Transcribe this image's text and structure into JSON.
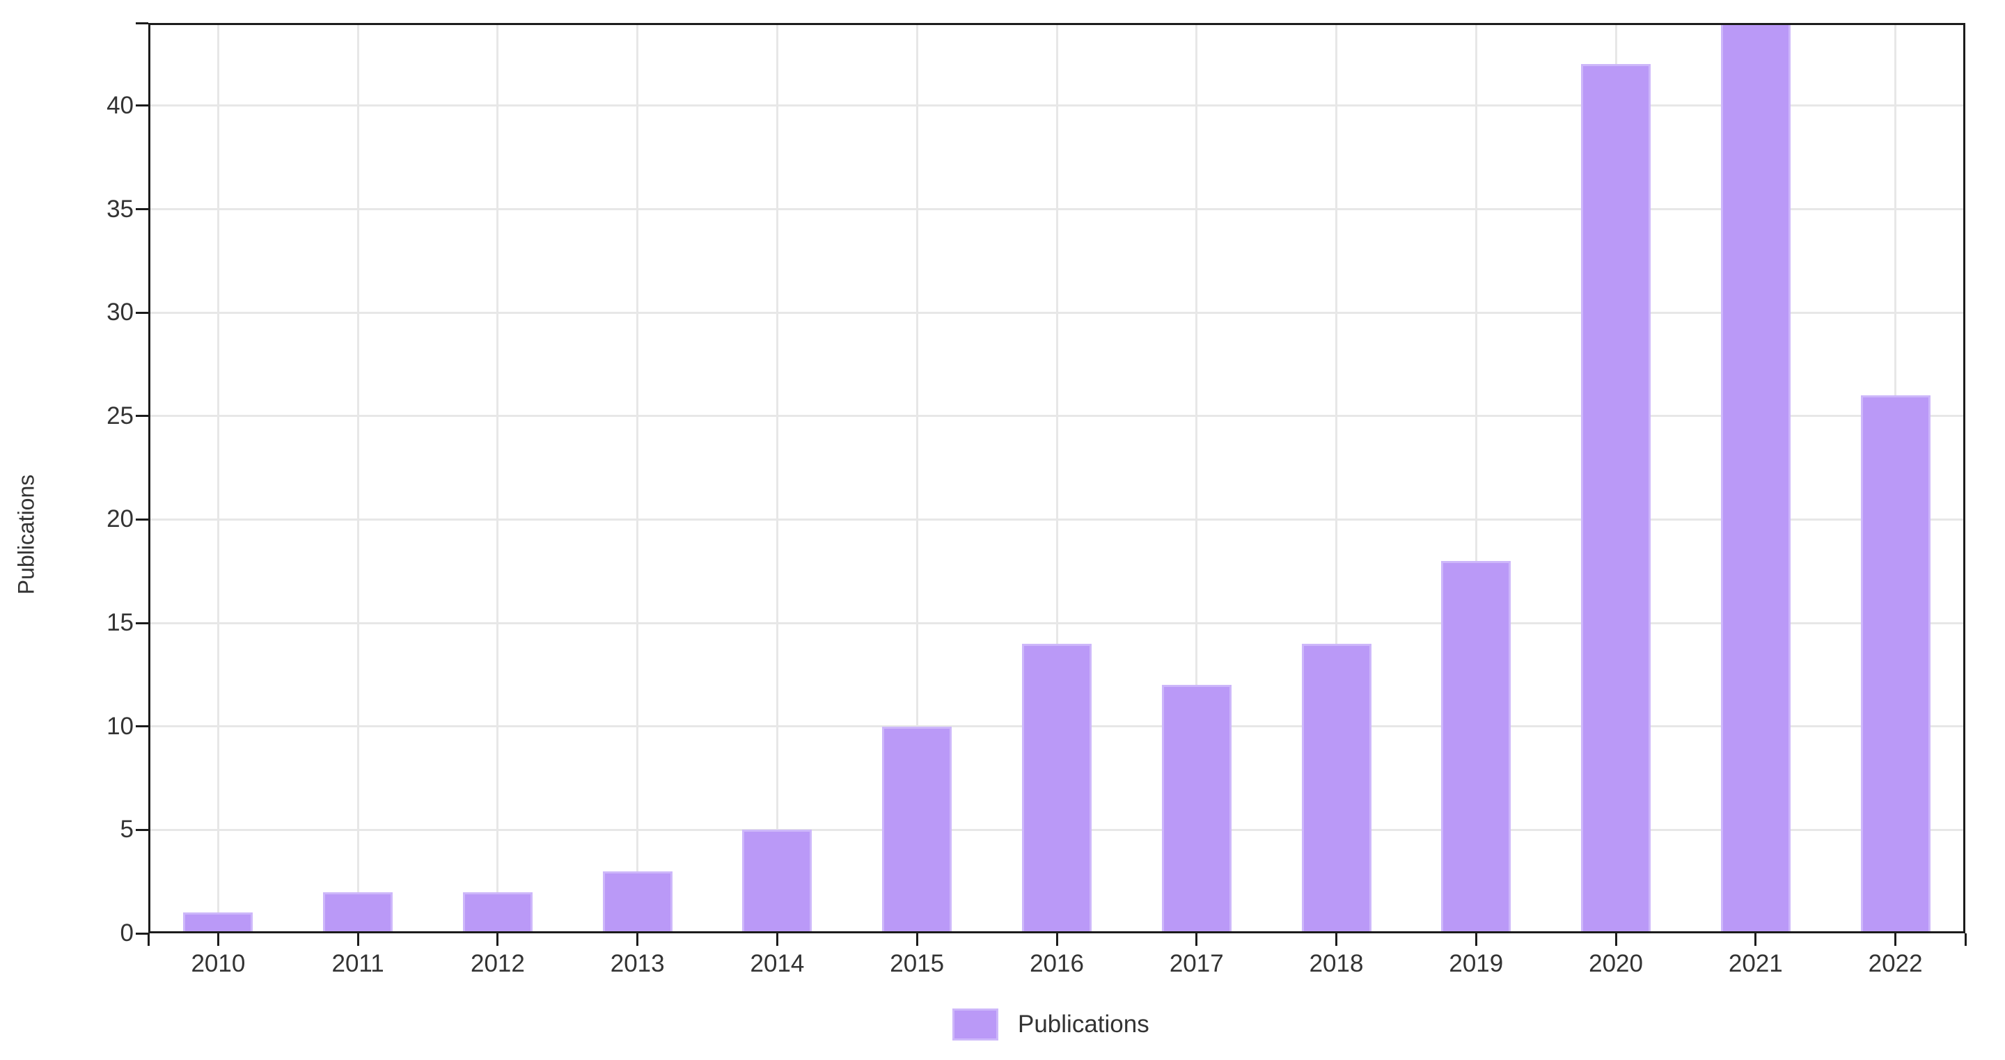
{
  "chart_data": {
    "type": "bar",
    "title": "",
    "categories": [
      "2010",
      "2011",
      "2012",
      "2013",
      "2014",
      "2015",
      "2016",
      "2017",
      "2018",
      "2019",
      "2020",
      "2021",
      "2022"
    ],
    "series": [
      {
        "name": "Publications",
        "values": [
          1,
          2,
          2,
          3,
          5,
          10,
          14,
          12,
          14,
          18,
          42,
          44,
          26
        ]
      }
    ],
    "xlabel": "",
    "ylabel": "Publications",
    "ylim": [
      0,
      44
    ],
    "yticks": [
      0,
      5,
      10,
      15,
      20,
      25,
      30,
      35,
      40
    ],
    "grid": "on",
    "legend": {
      "position": "bottom",
      "entries": [
        {
          "label": "Publications",
          "color": "#ba99f7"
        }
      ]
    },
    "colors": {
      "bar_fill": "#ba99f7",
      "bar_border": "#cdb7fa",
      "grid": "#e7e7e7",
      "axis": "#1c1c1c",
      "text": "#333333"
    }
  }
}
